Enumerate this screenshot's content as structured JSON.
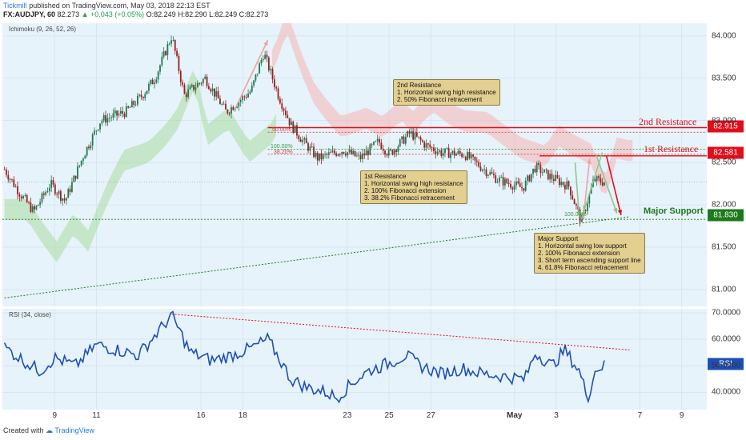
{
  "header": {
    "author": "Tickmill",
    "published": "published on TradingView.com, May 03, 2018 22:13 EST",
    "symbol": "FX:AUDJPY, 60",
    "last": "82.273",
    "change": "▲ +0.043 (+0.05%)",
    "ohlc": "O:82.249 H:82.290 L:82.249 C:82.273"
  },
  "main_pane": {
    "indicator": "Ichimoku (9, 26, 52, 26)",
    "levels": {
      "r2_label": "2nd Resistance",
      "r1_label": "1st Resistance",
      "support_label": "Major Support",
      "r2_tag": "82.915",
      "r1_tag": "82.581",
      "support_tag": "81.830"
    },
    "fib_labels": [
      "50.00%",
      "100.00%",
      "38.20%",
      "100.00%"
    ],
    "notes": {
      "r2": [
        "2nd Resistance",
        "1. Horizontal swing high resistance",
        "2. 50% Fibonacci retracement"
      ],
      "r1": [
        "1st Resistance",
        "1. Horizontal swing high resistance",
        "2. 100% Fibonacci extension",
        "3. 38.2% Fibonacci retracement"
      ],
      "support": [
        "Major Support",
        "1. Horizontal swing low support",
        "2. 100% Fibonacci extension",
        "3. Short term ascending support line",
        "4. 61.8% Fibonacci retracement"
      ]
    }
  },
  "rsi_pane": {
    "indicator": "RSI (34, close)",
    "tag": "RSI"
  },
  "footer": {
    "created_with": "Created with",
    "brand": "TradingView"
  },
  "colors": {
    "pane_bg": "#e7f3fb",
    "up_candle": "#1f7a52",
    "down_candle": "#9a2020",
    "rsi_line": "#1e4fb8",
    "resistance": "#e00e1a",
    "support": "#1c7a1c",
    "cloud_bull": "#a9dba0",
    "cloud_bear": "#f5b5b5",
    "note_bg": "#e3cf8f"
  },
  "chart_data": [
    {
      "type": "candlestick",
      "title": "FX:AUDJPY, 60",
      "y_ticks": [
        81.0,
        81.5,
        82.0,
        82.5,
        83.0,
        83.5,
        84.0
      ],
      "ylim": [
        80.8,
        84.15
      ],
      "x_ticks": [
        "9",
        "11",
        "16",
        "18",
        "23",
        "25",
        "27",
        "May",
        "3",
        "7",
        "9"
      ],
      "x_tick_days": [
        9,
        11,
        16,
        18,
        23,
        25,
        27,
        31,
        33,
        37,
        39
      ],
      "xlim_days": [
        6.5,
        40.2
      ],
      "close_path": [
        [
          6.6,
          82.42
        ],
        [
          7.3,
          82.15
        ],
        [
          8.0,
          81.92
        ],
        [
          8.8,
          82.25
        ],
        [
          9.5,
          82.05
        ],
        [
          10.4,
          82.6
        ],
        [
          11.2,
          83.0
        ],
        [
          12.4,
          83.1
        ],
        [
          13.2,
          83.3
        ],
        [
          13.8,
          83.5
        ],
        [
          14.6,
          84.0
        ],
        [
          15.2,
          83.3
        ],
        [
          16.2,
          83.5
        ],
        [
          17.2,
          83.1
        ],
        [
          18.4,
          83.35
        ],
        [
          19.0,
          83.8
        ],
        [
          19.7,
          83.3
        ],
        [
          20.3,
          82.95
        ],
        [
          20.9,
          82.75
        ],
        [
          21.6,
          82.55
        ],
        [
          22.8,
          82.65
        ],
        [
          23.6,
          82.55
        ],
        [
          24.5,
          82.75
        ],
        [
          25.0,
          82.6
        ],
        [
          26.0,
          82.85
        ],
        [
          26.8,
          82.7
        ],
        [
          27.5,
          82.62
        ],
        [
          28.6,
          82.6
        ],
        [
          29.4,
          82.45
        ],
        [
          30.2,
          82.3
        ],
        [
          31.4,
          82.2
        ],
        [
          32.0,
          82.45
        ],
        [
          32.6,
          82.35
        ],
        [
          33.6,
          82.22
        ],
        [
          34.2,
          81.8
        ],
        [
          34.8,
          82.3
        ],
        [
          35.3,
          82.27
        ]
      ],
      "ichimoku_cloud_note": "bullish cloud below price until ~Apr 20, bearish cloud from ~Apr 19 onward",
      "horizontal_levels": {
        "second_resistance": 82.915,
        "first_resistance": 82.581,
        "major_support": 81.83
      },
      "ascending_support_line": [
        [
          6.6,
          80.9
        ],
        [
          36.5,
          81.86
        ]
      ]
    },
    {
      "type": "line",
      "title": "RSI (34, close)",
      "y_ticks": [
        40.0,
        50.0,
        60.0,
        70.0
      ],
      "ylim": [
        33.5,
        71.5
      ],
      "series": [
        {
          "points": [
            [
              6.6,
              57
            ],
            [
              7.5,
              52
            ],
            [
              8.3,
              48
            ],
            [
              9.0,
              53
            ],
            [
              10.0,
              50
            ],
            [
              11.0,
              58
            ],
            [
              12.0,
              56
            ],
            [
              13.0,
              54
            ],
            [
              14.6,
              69
            ],
            [
              15.5,
              55
            ],
            [
              16.5,
              52
            ],
            [
              17.5,
              54
            ],
            [
              18.5,
              57
            ],
            [
              19.2,
              60
            ],
            [
              19.8,
              52
            ],
            [
              20.3,
              45
            ],
            [
              21.0,
              42
            ],
            [
              22.0,
              40
            ],
            [
              22.5,
              38
            ],
            [
              23.3,
              44
            ],
            [
              24.0,
              48
            ],
            [
              25.0,
              51
            ],
            [
              25.8,
              54
            ],
            [
              26.5,
              50
            ],
            [
              27.5,
              47
            ],
            [
              28.5,
              49
            ],
            [
              29.5,
              47
            ],
            [
              30.5,
              46
            ],
            [
              31.5,
              45
            ],
            [
              32.0,
              55
            ],
            [
              32.8,
              50
            ],
            [
              33.4,
              56
            ],
            [
              34.1,
              48
            ],
            [
              34.5,
              38
            ],
            [
              34.9,
              49
            ],
            [
              35.3,
              50
            ]
          ]
        }
      ],
      "trend_line": [
        [
          14.6,
          69.5
        ],
        [
          36.5,
          56.0
        ]
      ],
      "last_value_tag": "RSI"
    }
  ]
}
